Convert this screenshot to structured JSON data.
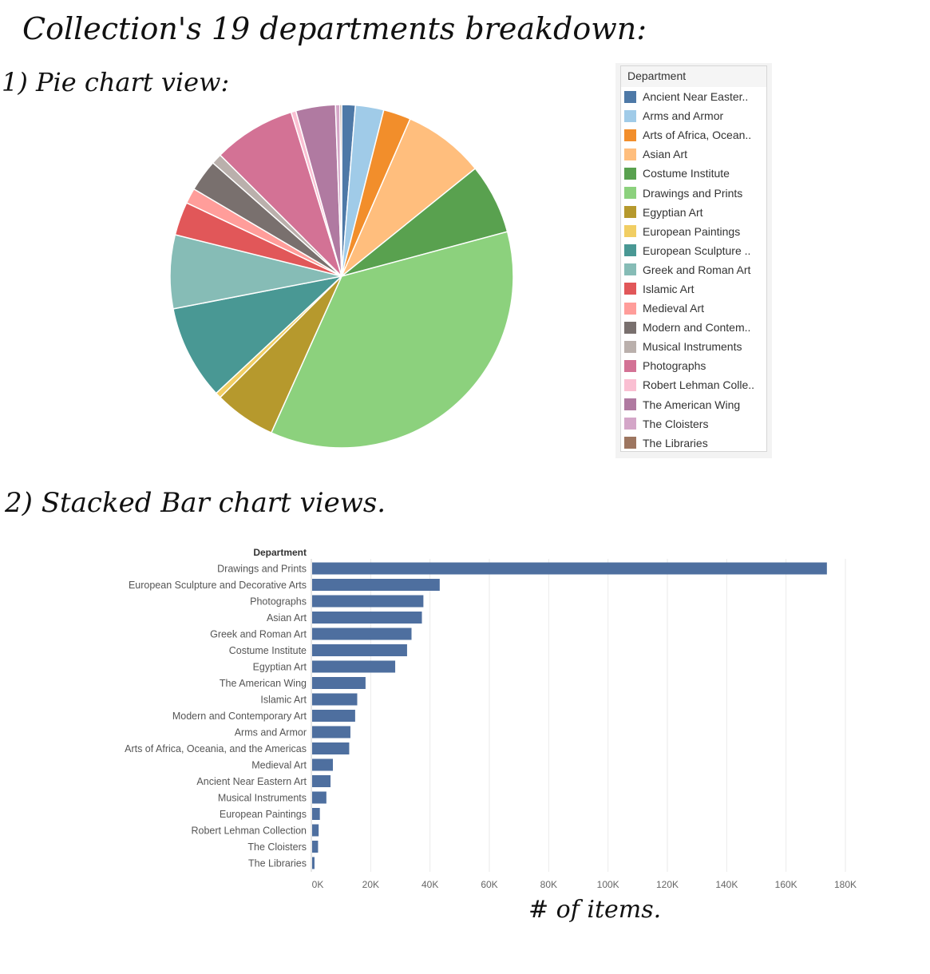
{
  "headings": {
    "main": "Collection's 19 departments breakdown:",
    "pie": "1) Pie chart view:",
    "bar": "2) Stacked Bar chart views.",
    "note": "# of items."
  },
  "legend": {
    "title": "Department",
    "items": [
      {
        "label": "Ancient Near Easter..",
        "color": "#4e79a7"
      },
      {
        "label": "Arms and Armor",
        "color": "#a0cbe8"
      },
      {
        "label": "Arts of Africa, Ocean..",
        "color": "#f28e2b"
      },
      {
        "label": "Asian Art",
        "color": "#ffbe7d"
      },
      {
        "label": "Costume Institute",
        "color": "#59a14f"
      },
      {
        "label": "Drawings and Prints",
        "color": "#8cd17d"
      },
      {
        "label": "Egyptian Art",
        "color": "#b6992d"
      },
      {
        "label": "European Paintings",
        "color": "#f1ce63"
      },
      {
        "label": "European Sculpture ..",
        "color": "#499894"
      },
      {
        "label": "Greek and Roman Art",
        "color": "#86bcb6"
      },
      {
        "label": "Islamic Art",
        "color": "#e15759"
      },
      {
        "label": "Medieval Art",
        "color": "#ff9d9a"
      },
      {
        "label": "Modern and Contem..",
        "color": "#79706e"
      },
      {
        "label": "Musical Instruments",
        "color": "#bab0ac"
      },
      {
        "label": "Photographs",
        "color": "#d37295"
      },
      {
        "label": "Robert Lehman Colle..",
        "color": "#fabfd2"
      },
      {
        "label": "The American Wing",
        "color": "#b07aa1"
      },
      {
        "label": "The Cloisters",
        "color": "#d4a6c8"
      },
      {
        "label": "The Libraries",
        "color": "#9d7660"
      }
    ]
  },
  "chart_data": [
    {
      "type": "pie",
      "title": "",
      "legend": "right",
      "categories": [
        "Ancient Near Eastern Art",
        "Arms and Armor",
        "Arts of Africa, Oceania, and the Americas",
        "Asian Art",
        "Costume Institute",
        "Drawings and Prints",
        "Egyptian Art",
        "European Paintings",
        "European Sculpture and Decorative Arts",
        "Greek and Roman Art",
        "Islamic Art",
        "Medieval Art",
        "Modern and Contemporary Art",
        "Musical Instruments",
        "Photographs",
        "Robert Lehman Collection",
        "The American Wing",
        "The Cloisters",
        "The Libraries"
      ],
      "values": [
        6200,
        12900,
        12500,
        37000,
        32000,
        173500,
        28000,
        2600,
        43000,
        33500,
        15200,
        7000,
        14500,
        4800,
        37500,
        2200,
        18000,
        2000,
        800
      ],
      "colors": [
        "#4e79a7",
        "#a0cbe8",
        "#f28e2b",
        "#ffbe7d",
        "#59a14f",
        "#8cd17d",
        "#b6992d",
        "#f1ce63",
        "#499894",
        "#86bcb6",
        "#e15759",
        "#ff9d9a",
        "#79706e",
        "#bab0ac",
        "#d37295",
        "#fabfd2",
        "#b07aa1",
        "#d4a6c8",
        "#9d7660"
      ]
    },
    {
      "type": "bar",
      "orientation": "horizontal",
      "title": "",
      "ylabel": "Department",
      "xlabel": "",
      "xlim": [
        0,
        180000
      ],
      "xticks": [
        "0K",
        "20K",
        "40K",
        "60K",
        "80K",
        "100K",
        "120K",
        "140K",
        "160K",
        "180K"
      ],
      "grid": true,
      "bar_color": "#4e6f9f",
      "categories": [
        "Drawings and Prints",
        "European Sculpture and Decorative Arts",
        "Photographs",
        "Asian Art",
        "Greek and Roman Art",
        "Costume Institute",
        "Egyptian Art",
        "The American Wing",
        "Islamic Art",
        "Modern and Contemporary Art",
        "Arms and Armor",
        "Arts of Africa, Oceania, and the Americas",
        "Medieval Art",
        "Ancient Near Eastern Art",
        "Musical Instruments",
        "European Paintings",
        "Robert Lehman Collection",
        "The Cloisters",
        "The Libraries"
      ],
      "values": [
        173500,
        43000,
        37500,
        37000,
        33500,
        32000,
        28000,
        18000,
        15200,
        14500,
        12900,
        12500,
        7000,
        6200,
        4800,
        2600,
        2200,
        2000,
        800
      ]
    }
  ]
}
